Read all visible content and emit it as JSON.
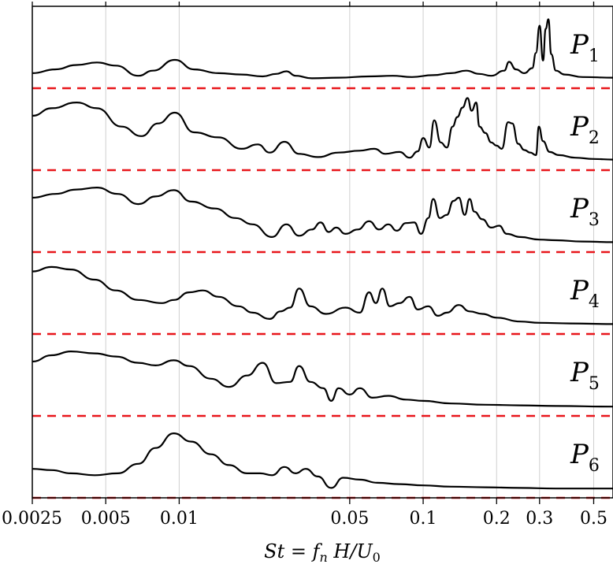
{
  "chart_data": {
    "type": "line",
    "xscale": "log",
    "xlim": [
      0.0025,
      0.6
    ],
    "xlabel": "St = f_n H/U_0",
    "xlabel_parts": {
      "lhs": "St",
      "eq": " = ",
      "f": "f",
      "n": "n",
      "H": " H/U",
      "zero": "0"
    },
    "xticks": [
      {
        "value": 0.0025,
        "label": "0.0025"
      },
      {
        "value": 0.005,
        "label": "0.005"
      },
      {
        "value": 0.01,
        "label": "0.01"
      },
      {
        "value": 0.05,
        "label": "0.05"
      },
      {
        "value": 0.1,
        "label": "0.1"
      },
      {
        "value": 0.2,
        "label": "0.2"
      },
      {
        "value": 0.3,
        "label": "0.3"
      },
      {
        "value": 0.5,
        "label": "0.5"
      }
    ],
    "grid_x": [
      0.005,
      0.01,
      0.05,
      0.1,
      0.2,
      0.3,
      0.5
    ],
    "colors": {
      "curve": "#000000",
      "baseline": "#e8161b",
      "grid": "#cfcfcf"
    },
    "series": [
      {
        "name": "P",
        "sub": "1",
        "points": [
          [
            0.0025,
            0.1
          ],
          [
            0.0031,
            0.16
          ],
          [
            0.0038,
            0.23
          ],
          [
            0.0046,
            0.27
          ],
          [
            0.0055,
            0.22
          ],
          [
            0.0068,
            0.06
          ],
          [
            0.0078,
            0.14
          ],
          [
            0.0096,
            0.31
          ],
          [
            0.0115,
            0.16
          ],
          [
            0.0145,
            0.1
          ],
          [
            0.018,
            0.08
          ],
          [
            0.022,
            0.05
          ],
          [
            0.025,
            0.09
          ],
          [
            0.0275,
            0.13
          ],
          [
            0.03,
            0.06
          ],
          [
            0.035,
            0.02
          ],
          [
            0.045,
            0.03
          ],
          [
            0.06,
            0.05
          ],
          [
            0.075,
            0.06
          ],
          [
            0.09,
            0.04
          ],
          [
            0.11,
            0.07
          ],
          [
            0.13,
            0.1
          ],
          [
            0.15,
            0.14
          ],
          [
            0.17,
            0.09
          ],
          [
            0.19,
            0.06
          ],
          [
            0.215,
            0.14
          ],
          [
            0.225,
            0.28
          ],
          [
            0.24,
            0.16
          ],
          [
            0.26,
            0.1
          ],
          [
            0.28,
            0.18
          ],
          [
            0.29,
            0.42
          ],
          [
            0.3,
            0.85
          ],
          [
            0.31,
            0.3
          ],
          [
            0.318,
            0.8
          ],
          [
            0.326,
            0.95
          ],
          [
            0.335,
            0.4
          ],
          [
            0.35,
            0.14
          ],
          [
            0.38,
            0.08
          ],
          [
            0.45,
            0.04
          ],
          [
            0.6,
            0.03
          ]
        ]
      },
      {
        "name": "P",
        "sub": "2",
        "points": [
          [
            0.0025,
            0.72
          ],
          [
            0.003,
            0.84
          ],
          [
            0.0038,
            0.93
          ],
          [
            0.0046,
            0.84
          ],
          [
            0.0058,
            0.55
          ],
          [
            0.007,
            0.4
          ],
          [
            0.0082,
            0.6
          ],
          [
            0.0096,
            0.77
          ],
          [
            0.0115,
            0.46
          ],
          [
            0.0145,
            0.38
          ],
          [
            0.018,
            0.2
          ],
          [
            0.021,
            0.27
          ],
          [
            0.0235,
            0.14
          ],
          [
            0.027,
            0.31
          ],
          [
            0.031,
            0.12
          ],
          [
            0.037,
            0.07
          ],
          [
            0.045,
            0.14
          ],
          [
            0.055,
            0.17
          ],
          [
            0.063,
            0.2
          ],
          [
            0.07,
            0.12
          ],
          [
            0.08,
            0.15
          ],
          [
            0.088,
            0.06
          ],
          [
            0.095,
            0.16
          ],
          [
            0.1,
            0.37
          ],
          [
            0.106,
            0.22
          ],
          [
            0.111,
            0.65
          ],
          [
            0.118,
            0.3
          ],
          [
            0.125,
            0.22
          ],
          [
            0.132,
            0.55
          ],
          [
            0.138,
            0.7
          ],
          [
            0.145,
            0.85
          ],
          [
            0.152,
            1.0
          ],
          [
            0.158,
            0.8
          ],
          [
            0.165,
            0.93
          ],
          [
            0.17,
            0.55
          ],
          [
            0.18,
            0.45
          ],
          [
            0.19,
            0.3
          ],
          [
            0.2,
            0.25
          ],
          [
            0.21,
            0.2
          ],
          [
            0.223,
            0.62
          ],
          [
            0.232,
            0.6
          ],
          [
            0.245,
            0.28
          ],
          [
            0.26,
            0.18
          ],
          [
            0.275,
            0.14
          ],
          [
            0.29,
            0.1
          ],
          [
            0.298,
            0.55
          ],
          [
            0.31,
            0.32
          ],
          [
            0.33,
            0.15
          ],
          [
            0.36,
            0.1
          ],
          [
            0.42,
            0.06
          ],
          [
            0.5,
            0.04
          ],
          [
            0.6,
            0.03
          ]
        ]
      },
      {
        "name": "P",
        "sub": "3",
        "points": [
          [
            0.0025,
            0.72
          ],
          [
            0.0031,
            0.78
          ],
          [
            0.0038,
            0.85
          ],
          [
            0.0046,
            0.88
          ],
          [
            0.0056,
            0.78
          ],
          [
            0.0068,
            0.62
          ],
          [
            0.008,
            0.74
          ],
          [
            0.0095,
            0.84
          ],
          [
            0.0112,
            0.66
          ],
          [
            0.014,
            0.55
          ],
          [
            0.017,
            0.4
          ],
          [
            0.02,
            0.3
          ],
          [
            0.024,
            0.1
          ],
          [
            0.0275,
            0.3
          ],
          [
            0.031,
            0.12
          ],
          [
            0.035,
            0.22
          ],
          [
            0.038,
            0.33
          ],
          [
            0.041,
            0.18
          ],
          [
            0.044,
            0.25
          ],
          [
            0.048,
            0.15
          ],
          [
            0.054,
            0.22
          ],
          [
            0.06,
            0.35
          ],
          [
            0.066,
            0.22
          ],
          [
            0.072,
            0.3
          ],
          [
            0.078,
            0.2
          ],
          [
            0.085,
            0.32
          ],
          [
            0.092,
            0.33
          ],
          [
            0.098,
            0.15
          ],
          [
            0.105,
            0.4
          ],
          [
            0.11,
            0.7
          ],
          [
            0.117,
            0.4
          ],
          [
            0.125,
            0.45
          ],
          [
            0.133,
            0.67
          ],
          [
            0.14,
            0.72
          ],
          [
            0.148,
            0.45
          ],
          [
            0.155,
            0.7
          ],
          [
            0.162,
            0.5
          ],
          [
            0.175,
            0.38
          ],
          [
            0.19,
            0.25
          ],
          [
            0.205,
            0.28
          ],
          [
            0.22,
            0.15
          ],
          [
            0.25,
            0.1
          ],
          [
            0.3,
            0.06
          ],
          [
            0.35,
            0.05
          ],
          [
            0.45,
            0.03
          ],
          [
            0.6,
            0.02
          ]
        ]
      },
      {
        "name": "P",
        "sub": "4",
        "points": [
          [
            0.0025,
            0.85
          ],
          [
            0.003,
            0.92
          ],
          [
            0.0036,
            0.88
          ],
          [
            0.0045,
            0.72
          ],
          [
            0.0055,
            0.55
          ],
          [
            0.0068,
            0.4
          ],
          [
            0.0085,
            0.35
          ],
          [
            0.0095,
            0.4
          ],
          [
            0.011,
            0.52
          ],
          [
            0.0125,
            0.55
          ],
          [
            0.0145,
            0.45
          ],
          [
            0.0175,
            0.3
          ],
          [
            0.02,
            0.2
          ],
          [
            0.0235,
            0.1
          ],
          [
            0.026,
            0.22
          ],
          [
            0.0285,
            0.28
          ],
          [
            0.031,
            0.58
          ],
          [
            0.0345,
            0.3
          ],
          [
            0.04,
            0.18
          ],
          [
            0.048,
            0.28
          ],
          [
            0.055,
            0.2
          ],
          [
            0.06,
            0.52
          ],
          [
            0.064,
            0.35
          ],
          [
            0.068,
            0.58
          ],
          [
            0.073,
            0.3
          ],
          [
            0.08,
            0.35
          ],
          [
            0.088,
            0.45
          ],
          [
            0.095,
            0.25
          ],
          [
            0.105,
            0.3
          ],
          [
            0.115,
            0.15
          ],
          [
            0.125,
            0.2
          ],
          [
            0.14,
            0.32
          ],
          [
            0.155,
            0.22
          ],
          [
            0.175,
            0.18
          ],
          [
            0.2,
            0.12
          ],
          [
            0.25,
            0.06
          ],
          [
            0.3,
            0.04
          ],
          [
            0.4,
            0.03
          ],
          [
            0.6,
            0.02
          ]
        ]
      },
      {
        "name": "P",
        "sub": "5",
        "points": [
          [
            0.0025,
            0.72
          ],
          [
            0.003,
            0.82
          ],
          [
            0.0036,
            0.88
          ],
          [
            0.0045,
            0.85
          ],
          [
            0.0055,
            0.8
          ],
          [
            0.0068,
            0.7
          ],
          [
            0.008,
            0.66
          ],
          [
            0.0095,
            0.74
          ],
          [
            0.011,
            0.65
          ],
          [
            0.0135,
            0.45
          ],
          [
            0.016,
            0.32
          ],
          [
            0.019,
            0.5
          ],
          [
            0.022,
            0.7
          ],
          [
            0.025,
            0.38
          ],
          [
            0.0285,
            0.4
          ],
          [
            0.031,
            0.65
          ],
          [
            0.0345,
            0.4
          ],
          [
            0.039,
            0.3
          ],
          [
            0.042,
            0.1
          ],
          [
            0.045,
            0.3
          ],
          [
            0.05,
            0.2
          ],
          [
            0.055,
            0.3
          ],
          [
            0.062,
            0.15
          ],
          [
            0.072,
            0.18
          ],
          [
            0.085,
            0.12
          ],
          [
            0.1,
            0.1
          ],
          [
            0.13,
            0.06
          ],
          [
            0.18,
            0.04
          ],
          [
            0.25,
            0.03
          ],
          [
            0.35,
            0.02
          ],
          [
            0.6,
            0.01
          ]
        ]
      },
      {
        "name": "P",
        "sub": "6",
        "points": [
          [
            0.0025,
            0.32
          ],
          [
            0.003,
            0.3
          ],
          [
            0.0036,
            0.25
          ],
          [
            0.0045,
            0.22
          ],
          [
            0.0056,
            0.25
          ],
          [
            0.0068,
            0.4
          ],
          [
            0.008,
            0.65
          ],
          [
            0.0095,
            0.88
          ],
          [
            0.0112,
            0.75
          ],
          [
            0.0135,
            0.55
          ],
          [
            0.016,
            0.38
          ],
          [
            0.019,
            0.25
          ],
          [
            0.0215,
            0.25
          ],
          [
            0.024,
            0.22
          ],
          [
            0.027,
            0.35
          ],
          [
            0.03,
            0.25
          ],
          [
            0.033,
            0.32
          ],
          [
            0.037,
            0.2
          ],
          [
            0.042,
            0.02
          ],
          [
            0.047,
            0.18
          ],
          [
            0.055,
            0.15
          ],
          [
            0.065,
            0.1
          ],
          [
            0.08,
            0.08
          ],
          [
            0.1,
            0.06
          ],
          [
            0.13,
            0.04
          ],
          [
            0.18,
            0.03
          ],
          [
            0.25,
            0.02
          ],
          [
            0.35,
            0.01
          ],
          [
            0.6,
            0.01
          ]
        ]
      }
    ]
  }
}
